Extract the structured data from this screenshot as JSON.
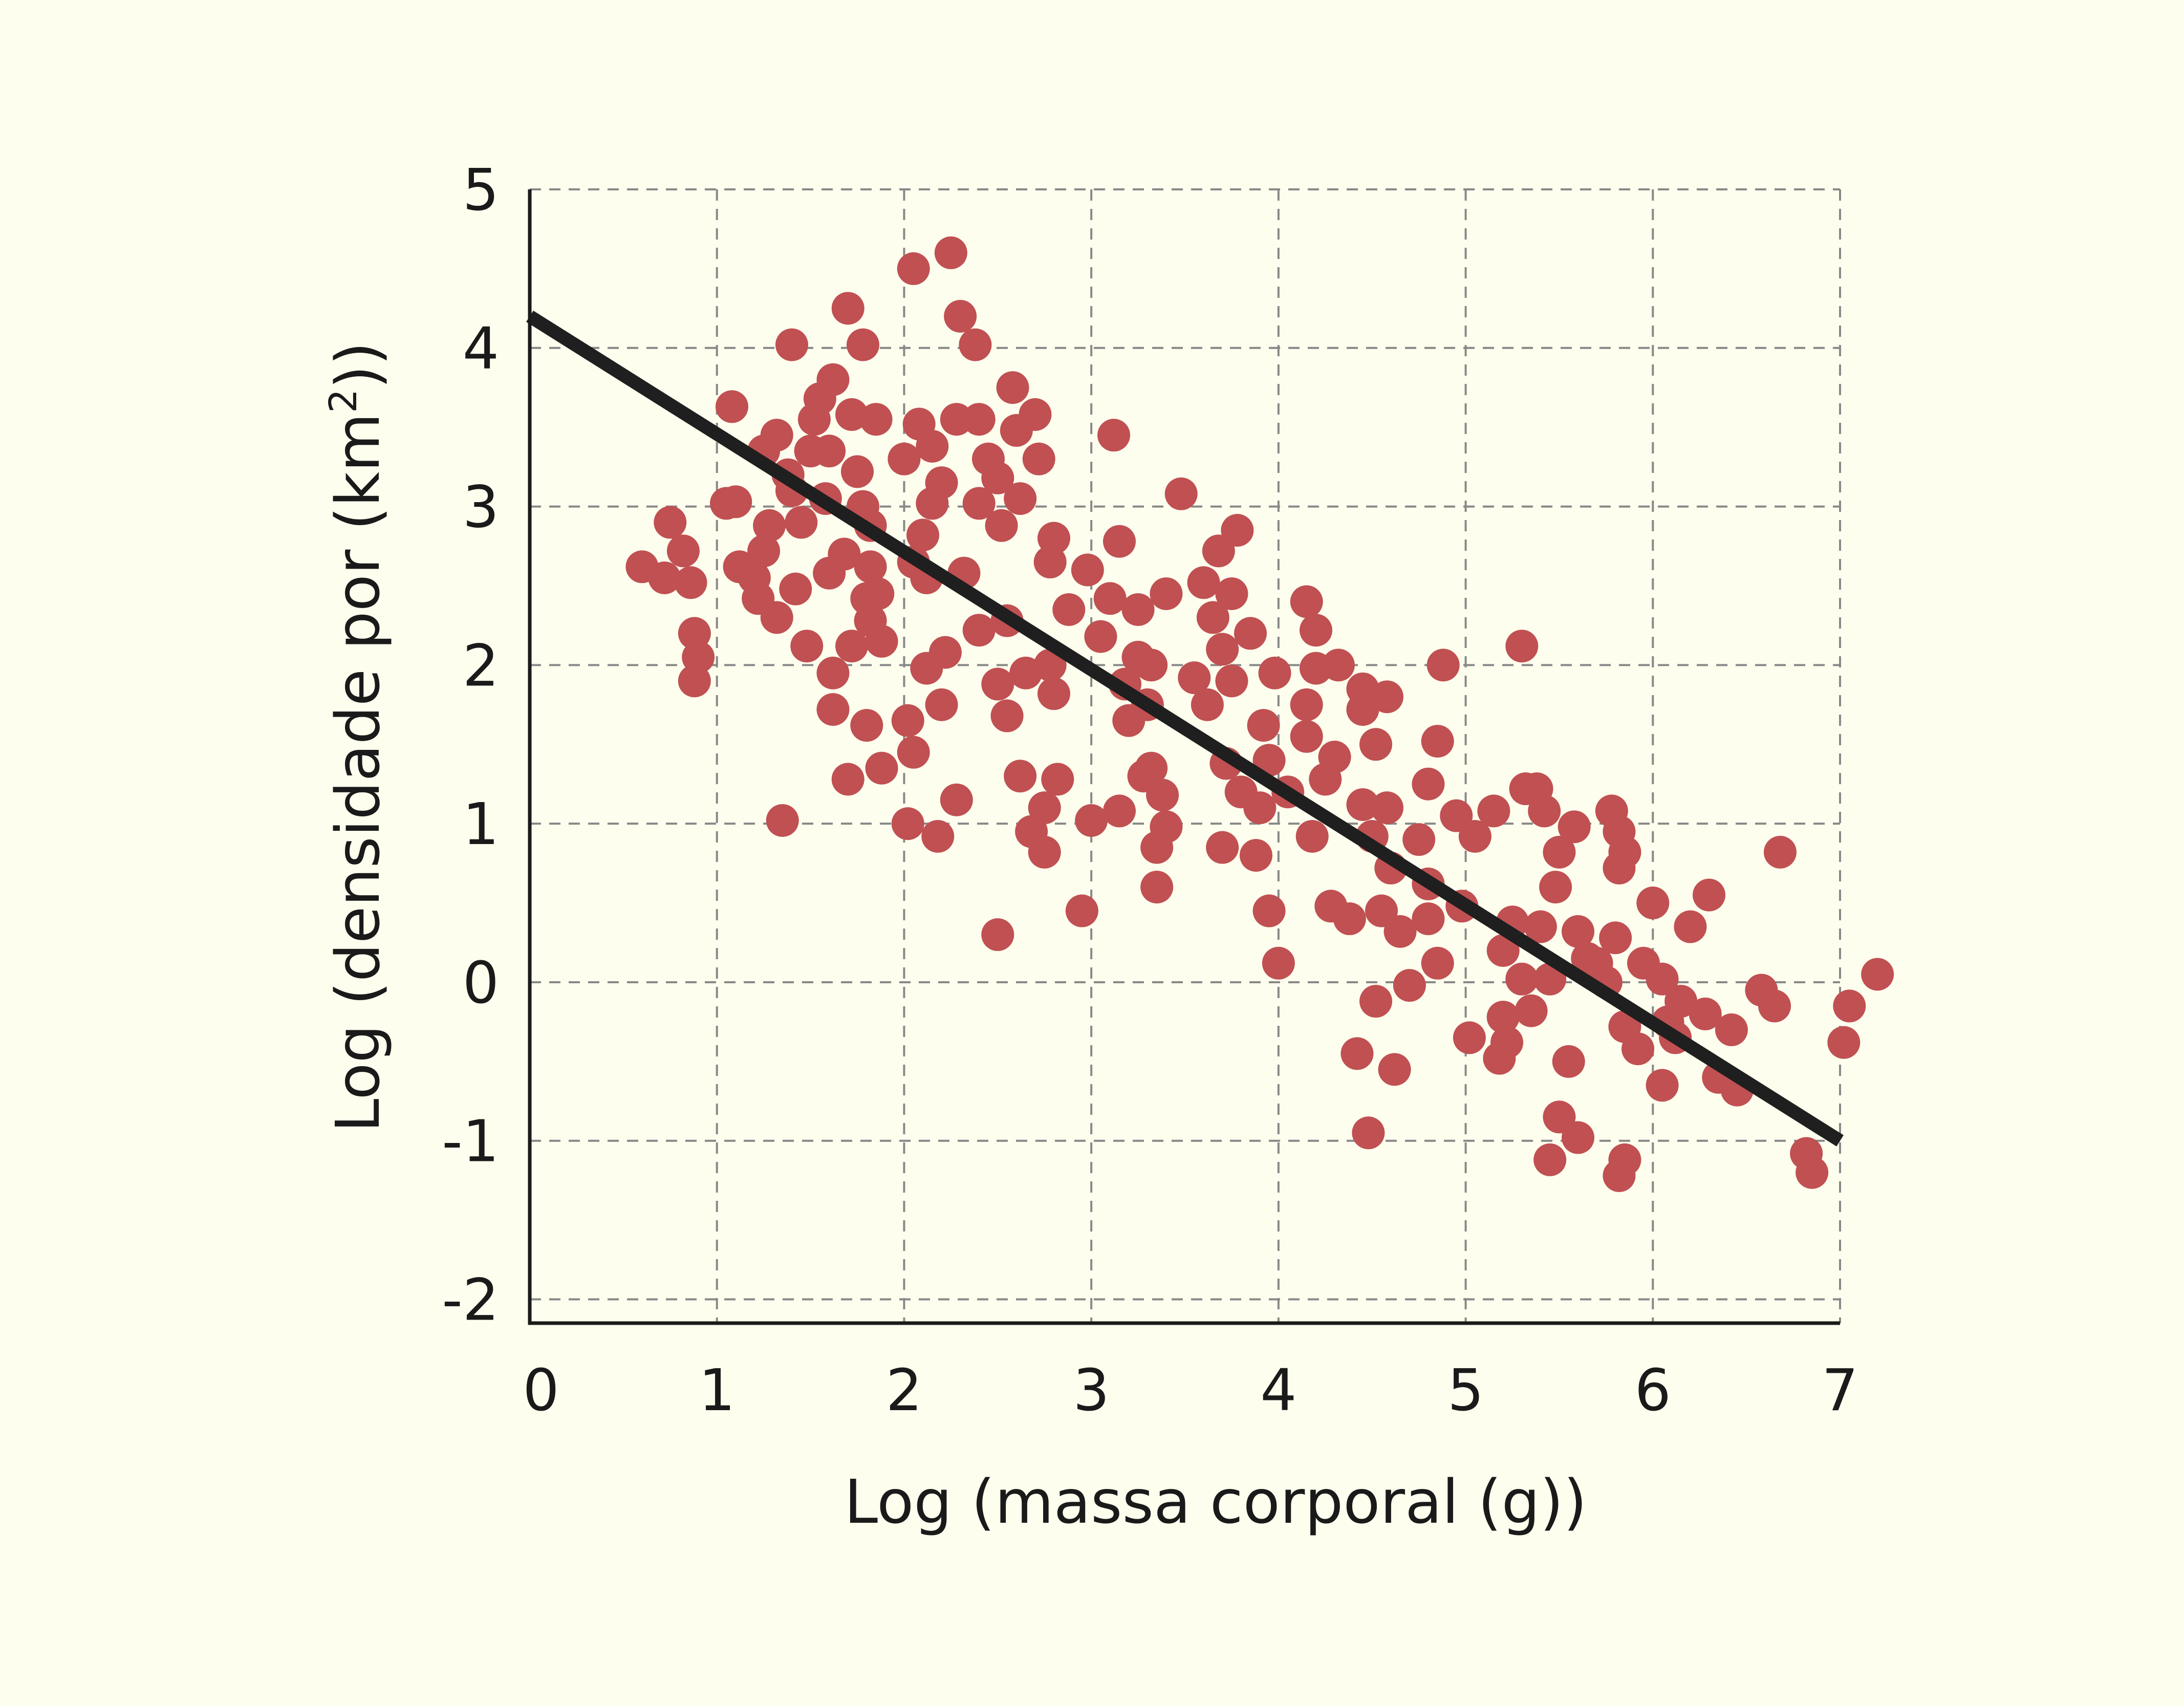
{
  "chart_data": {
    "type": "scatter",
    "title": "",
    "xlabel": "Log (massa corporal (g))",
    "ylabel_prefix": "Log (densidade por (km",
    "ylabel_sup": "2",
    "ylabel_suffix": "))",
    "xlim": [
      0,
      7
    ],
    "ylim": [
      -2.15,
      5
    ],
    "x_ticks": [
      "0",
      "1",
      "2",
      "3",
      "4",
      "5",
      "6",
      "7"
    ],
    "y_ticks": [
      "-2",
      "-1",
      "0",
      "1",
      "2",
      "3",
      "4",
      "5"
    ],
    "x_tick_values": [
      0,
      1,
      2,
      3,
      4,
      5,
      6,
      7
    ],
    "y_tick_values": [
      -2,
      -1,
      0,
      1,
      2,
      3,
      4,
      5
    ],
    "grid": true,
    "grid_style": "dashed",
    "colors": {
      "background": "#fdfeee",
      "points": "#c05052",
      "trend_line": "#1f1f1f",
      "grid": "#888888",
      "axis": "#1a1a1a"
    },
    "trend_line": {
      "x": [
        0,
        7
      ],
      "y": [
        4.2,
        -1.0
      ]
    },
    "points": [
      [
        0.6,
        2.62
      ],
      [
        0.72,
        2.55
      ],
      [
        0.75,
        2.9
      ],
      [
        0.82,
        2.72
      ],
      [
        0.86,
        2.52
      ],
      [
        0.88,
        2.2
      ],
      [
        0.9,
        2.05
      ],
      [
        0.88,
        1.9
      ],
      [
        1.05,
        3.02
      ],
      [
        1.1,
        3.03
      ],
      [
        1.08,
        3.63
      ],
      [
        1.12,
        2.62
      ],
      [
        1.2,
        2.55
      ],
      [
        1.22,
        2.42
      ],
      [
        1.25,
        2.72
      ],
      [
        1.28,
        2.88
      ],
      [
        1.25,
        3.35
      ],
      [
        1.32,
        3.45
      ],
      [
        1.32,
        2.3
      ],
      [
        1.38,
        3.2
      ],
      [
        1.4,
        3.1
      ],
      [
        1.42,
        2.48
      ],
      [
        1.45,
        2.9
      ],
      [
        1.4,
        4.02
      ],
      [
        1.48,
        2.12
      ],
      [
        1.5,
        3.35
      ],
      [
        1.52,
        3.55
      ],
      [
        1.55,
        3.68
      ],
      [
        1.58,
        3.05
      ],
      [
        1.6,
        3.35
      ],
      [
        1.62,
        3.8
      ],
      [
        1.6,
        2.58
      ],
      [
        1.62,
        1.95
      ],
      [
        1.62,
        1.72
      ],
      [
        1.68,
        2.7
      ],
      [
        1.7,
        4.25
      ],
      [
        1.72,
        3.58
      ],
      [
        1.72,
        2.12
      ],
      [
        1.75,
        3.22
      ],
      [
        1.78,
        3.0
      ],
      [
        1.78,
        4.02
      ],
      [
        1.8,
        2.42
      ],
      [
        1.82,
        2.88
      ],
      [
        1.82,
        2.62
      ],
      [
        1.82,
        2.28
      ],
      [
        1.8,
        1.62
      ],
      [
        1.85,
        3.55
      ],
      [
        1.86,
        2.45
      ],
      [
        1.88,
        2.15
      ],
      [
        1.7,
        1.28
      ],
      [
        1.88,
        1.35
      ],
      [
        1.35,
        1.02
      ],
      [
        2.0,
        3.3
      ],
      [
        2.02,
        1.65
      ],
      [
        2.05,
        2.65
      ],
      [
        2.05,
        4.5
      ],
      [
        2.08,
        3.52
      ],
      [
        2.1,
        2.82
      ],
      [
        2.12,
        2.55
      ],
      [
        2.12,
        1.98
      ],
      [
        2.15,
        3.02
      ],
      [
        2.15,
        3.38
      ],
      [
        2.2,
        3.15
      ],
      [
        2.2,
        1.75
      ],
      [
        2.22,
        2.08
      ],
      [
        2.25,
        4.6
      ],
      [
        2.28,
        3.55
      ],
      [
        2.3,
        4.2
      ],
      [
        2.32,
        2.58
      ],
      [
        2.05,
        1.45
      ],
      [
        2.02,
        1.0
      ],
      [
        2.18,
        0.92
      ],
      [
        2.28,
        1.15
      ],
      [
        2.38,
        4.02
      ],
      [
        2.4,
        3.55
      ],
      [
        2.4,
        3.02
      ],
      [
        2.4,
        2.22
      ],
      [
        2.45,
        3.3
      ],
      [
        2.5,
        3.18
      ],
      [
        2.5,
        1.88
      ],
      [
        2.52,
        2.88
      ],
      [
        2.55,
        2.28
      ],
      [
        2.55,
        1.68
      ],
      [
        2.58,
        3.75
      ],
      [
        2.6,
        3.48
      ],
      [
        2.62,
        3.05
      ],
      [
        2.65,
        1.95
      ],
      [
        2.62,
        1.3
      ],
      [
        2.68,
        0.95
      ],
      [
        2.7,
        3.58
      ],
      [
        2.72,
        3.3
      ],
      [
        2.75,
        1.1
      ],
      [
        2.75,
        0.82
      ],
      [
        2.78,
        2.65
      ],
      [
        2.8,
        2.8
      ],
      [
        2.78,
        2.0
      ],
      [
        2.8,
        1.82
      ],
      [
        2.82,
        1.28
      ],
      [
        2.88,
        2.35
      ],
      [
        2.5,
        0.3
      ],
      [
        2.95,
        0.45
      ],
      [
        2.98,
        2.6
      ],
      [
        3.0,
        1.02
      ],
      [
        3.05,
        2.18
      ],
      [
        3.1,
        2.42
      ],
      [
        3.12,
        3.45
      ],
      [
        3.15,
        2.78
      ],
      [
        3.15,
        1.08
      ],
      [
        3.18,
        1.88
      ],
      [
        3.2,
        1.65
      ],
      [
        3.25,
        2.35
      ],
      [
        3.25,
        2.05
      ],
      [
        3.28,
        1.3
      ],
      [
        3.3,
        1.75
      ],
      [
        3.32,
        2.0
      ],
      [
        3.32,
        1.35
      ],
      [
        3.35,
        0.85
      ],
      [
        3.35,
        0.6
      ],
      [
        3.38,
        1.18
      ],
      [
        3.4,
        0.98
      ],
      [
        3.4,
        2.45
      ],
      [
        3.48,
        3.08
      ],
      [
        3.55,
        1.92
      ],
      [
        3.6,
        2.52
      ],
      [
        3.62,
        1.75
      ],
      [
        3.65,
        2.3
      ],
      [
        3.68,
        2.72
      ],
      [
        3.7,
        2.1
      ],
      [
        3.7,
        0.85
      ],
      [
        3.72,
        1.38
      ],
      [
        3.75,
        2.45
      ],
      [
        3.75,
        1.9
      ],
      [
        3.78,
        2.85
      ],
      [
        3.8,
        1.2
      ],
      [
        3.85,
        2.2
      ],
      [
        3.88,
        0.8
      ],
      [
        3.9,
        1.1
      ],
      [
        3.92,
        1.62
      ],
      [
        3.95,
        1.4
      ],
      [
        3.95,
        0.45
      ],
      [
        3.98,
        1.95
      ],
      [
        4.0,
        0.12
      ],
      [
        4.05,
        1.2
      ],
      [
        4.15,
        2.4
      ],
      [
        4.15,
        1.75
      ],
      [
        4.15,
        1.55
      ],
      [
        4.18,
        0.92
      ],
      [
        4.2,
        2.22
      ],
      [
        4.2,
        1.98
      ],
      [
        4.25,
        1.28
      ],
      [
        4.28,
        0.48
      ],
      [
        4.3,
        1.42
      ],
      [
        4.32,
        2.0
      ],
      [
        4.38,
        0.4
      ],
      [
        4.42,
        -0.45
      ],
      [
        4.45,
        1.85
      ],
      [
        4.45,
        1.72
      ],
      [
        4.45,
        1.12
      ],
      [
        4.48,
        -0.95
      ],
      [
        4.5,
        0.92
      ],
      [
        4.52,
        1.5
      ],
      [
        4.52,
        -0.12
      ],
      [
        4.55,
        0.45
      ],
      [
        4.58,
        1.1
      ],
      [
        4.58,
        1.8
      ],
      [
        4.6,
        0.72
      ],
      [
        4.62,
        -0.55
      ],
      [
        4.65,
        0.32
      ],
      [
        4.7,
        -0.02
      ],
      [
        4.75,
        0.9
      ],
      [
        4.8,
        0.4
      ],
      [
        4.8,
        0.62
      ],
      [
        4.8,
        1.25
      ],
      [
        4.85,
        0.12
      ],
      [
        4.85,
        1.52
      ],
      [
        4.88,
        2.0
      ],
      [
        4.95,
        1.05
      ],
      [
        4.98,
        0.48
      ],
      [
        5.02,
        -0.35
      ],
      [
        5.05,
        0.92
      ],
      [
        5.15,
        1.08
      ],
      [
        5.18,
        -0.48
      ],
      [
        5.2,
        -0.22
      ],
      [
        5.2,
        0.2
      ],
      [
        5.22,
        -0.38
      ],
      [
        5.25,
        0.38
      ],
      [
        5.3,
        0.02
      ],
      [
        5.3,
        2.12
      ],
      [
        5.32,
        1.22
      ],
      [
        5.35,
        -0.18
      ],
      [
        5.38,
        1.22
      ],
      [
        5.4,
        0.35
      ],
      [
        5.42,
        1.08
      ],
      [
        5.45,
        0.02
      ],
      [
        5.45,
        -1.12
      ],
      [
        5.48,
        0.6
      ],
      [
        5.5,
        0.82
      ],
      [
        5.5,
        -0.85
      ],
      [
        5.55,
        -0.5
      ],
      [
        5.58,
        0.98
      ],
      [
        5.6,
        0.32
      ],
      [
        5.6,
        -0.98
      ],
      [
        5.65,
        0.15
      ],
      [
        5.7,
        0.12
      ],
      [
        5.75,
        0.0
      ],
      [
        5.78,
        1.08
      ],
      [
        5.8,
        0.28
      ],
      [
        5.82,
        0.72
      ],
      [
        5.82,
        0.95
      ],
      [
        5.82,
        -1.22
      ],
      [
        5.85,
        0.82
      ],
      [
        5.85,
        -1.12
      ],
      [
        5.85,
        -0.28
      ],
      [
        5.92,
        -0.42
      ],
      [
        5.95,
        0.12
      ],
      [
        6.0,
        0.5
      ],
      [
        6.05,
        0.02
      ],
      [
        6.05,
        -0.65
      ],
      [
        6.08,
        -0.25
      ],
      [
        6.12,
        -0.35
      ],
      [
        6.15,
        -0.12
      ],
      [
        6.2,
        0.35
      ],
      [
        6.28,
        -0.2
      ],
      [
        6.3,
        0.55
      ],
      [
        6.35,
        -0.6
      ],
      [
        6.42,
        -0.3
      ],
      [
        6.45,
        -0.68
      ],
      [
        6.58,
        -0.05
      ],
      [
        6.65,
        -0.15
      ],
      [
        6.68,
        0.82
      ],
      [
        6.82,
        -1.08
      ],
      [
        6.85,
        -1.2
      ],
      [
        7.02,
        -0.38
      ],
      [
        7.05,
        -0.15
      ],
      [
        7.2,
        0.05
      ]
    ]
  }
}
